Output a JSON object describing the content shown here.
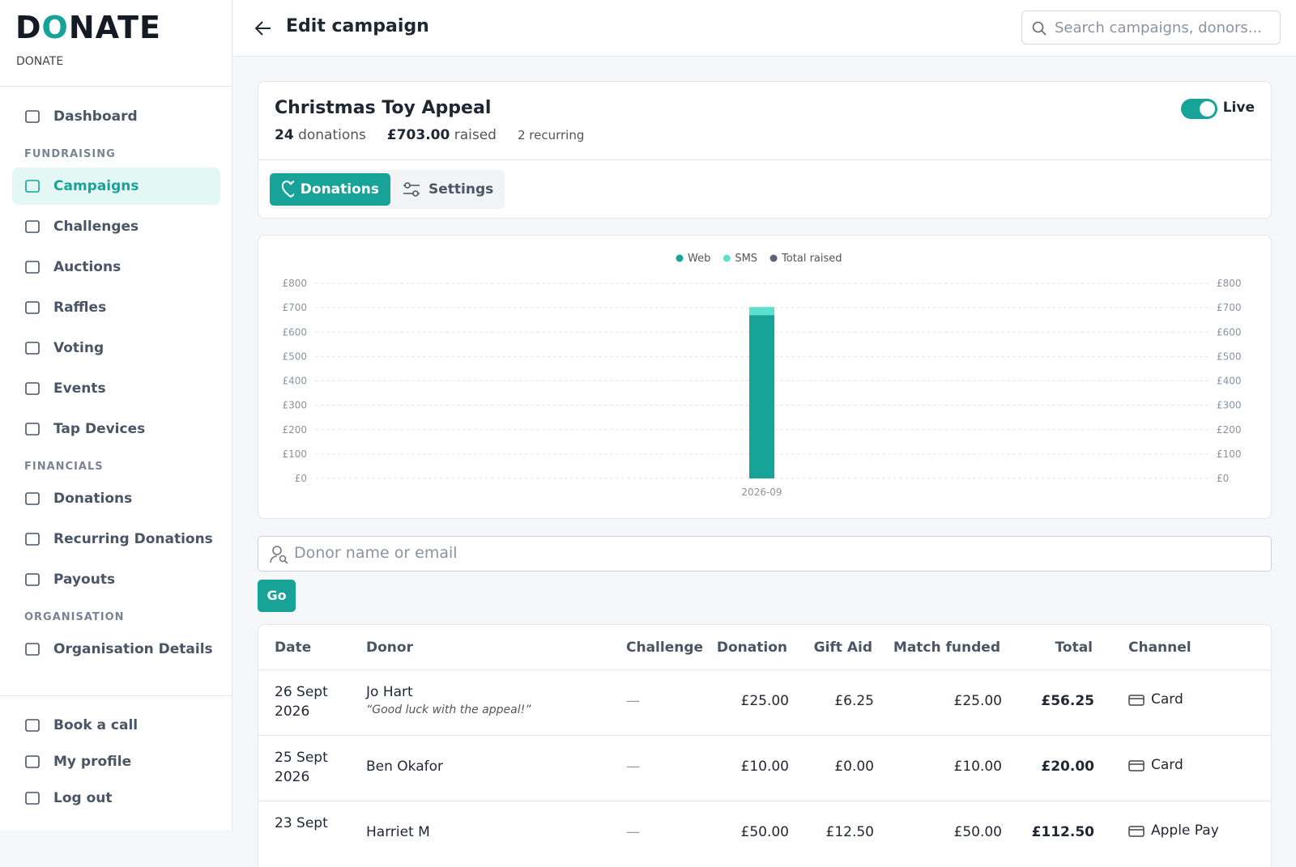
{
  "brand": {
    "logo": "DONATE",
    "subtitle": "DONATE"
  },
  "nav": {
    "top": [
      "Dashboard"
    ],
    "sections": [
      {
        "heading": "FUNDRAISING",
        "items": [
          "Campaigns",
          "Challenges",
          "Auctions",
          "Raffles",
          "Voting",
          "Events",
          "Tap Devices"
        ]
      },
      {
        "heading": "FINANCIALS",
        "items": [
          "Donations",
          "Recurring Donations",
          "Payouts"
        ]
      },
      {
        "heading": "ORGANISATION",
        "items": [
          "Organisation Details"
        ]
      }
    ],
    "footer": [
      "Book a call",
      "My profile",
      "Log out"
    ]
  },
  "header": {
    "title": "Edit campaign",
    "search_placeholder": "Search campaigns, donors..."
  },
  "campaign": {
    "title": "Christmas Toy Appeal",
    "donations_count": "24",
    "donations_label": "donations",
    "raised_amount": "£703.00",
    "raised_label": "raised",
    "recurring": "2 recurring",
    "status": "Live",
    "tabs": [
      "Donations",
      "Settings"
    ]
  },
  "chart_data": {
    "type": "bar",
    "stacked": true,
    "categories": [
      "2026-09"
    ],
    "series": [
      {
        "name": "Web",
        "color": "#17a398",
        "values": [
          670
        ]
      },
      {
        "name": "SMS",
        "color": "#5ee0cf",
        "values": [
          33
        ]
      },
      {
        "name": "Total raised",
        "color": "#5b6478",
        "values": [
          703
        ],
        "axis": "y2",
        "type": "line"
      }
    ],
    "ylim": [
      0,
      800
    ],
    "yticks": [
      {
        "value": 0,
        "label": "£0"
      },
      {
        "value": 100,
        "label": "£100"
      },
      {
        "value": 200,
        "label": "£200"
      },
      {
        "value": 300,
        "label": "£300"
      },
      {
        "value": 400,
        "label": "£400"
      },
      {
        "value": 500,
        "label": "£500"
      },
      {
        "value": 600,
        "label": "£600"
      },
      {
        "value": 700,
        "label": "£700"
      },
      {
        "value": 800,
        "label": "£800"
      }
    ],
    "y2lim": [
      0,
      800
    ],
    "y2ticks": [
      {
        "value": 0,
        "label": "£0"
      },
      {
        "value": 100,
        "label": "£100"
      },
      {
        "value": 200,
        "label": "£200"
      },
      {
        "value": 300,
        "label": "£300"
      },
      {
        "value": 400,
        "label": "£400"
      },
      {
        "value": 500,
        "label": "£500"
      },
      {
        "value": 600,
        "label": "£600"
      },
      {
        "value": 700,
        "label": "£700"
      },
      {
        "value": 800,
        "label": "£800"
      }
    ],
    "grid": true,
    "legend": "top"
  },
  "filter": {
    "placeholder": "Donor name or email",
    "button": "Go"
  },
  "table": {
    "headers": [
      "Date",
      "Donor",
      "Challenge",
      "Donation",
      "Gift Aid",
      "Match funded",
      "Total",
      "Channel"
    ],
    "rows": [
      {
        "date": "26 Sept 2026",
        "donor": "Jo Hart",
        "note": "“Good luck with the appeal!”",
        "challenge": "—",
        "donation": "£25.00",
        "gift_aid": "£6.25",
        "match": "£25.00",
        "total": "£56.25",
        "channel": "Card"
      },
      {
        "date": "25 Sept 2026",
        "donor": "Ben Okafor",
        "challenge": "—",
        "donation": "£10.00",
        "gift_aid": "£0.00",
        "match": "£10.00",
        "total": "£20.00",
        "channel": "Card"
      },
      {
        "date": "23 Sept",
        "donor": "Harriet M",
        "challenge": "—",
        "donation": "£50.00",
        "gift_aid": "£12.50",
        "match": "£50.00",
        "total": "£112.50",
        "channel": "Apple Pay"
      }
    ]
  }
}
